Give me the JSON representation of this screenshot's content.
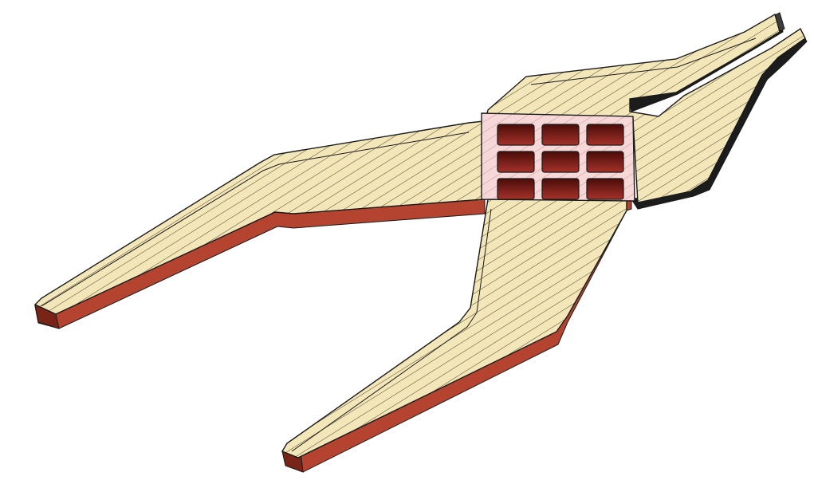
{
  "scene": {
    "subject": "pliers-section-view",
    "colors": {
      "background": "#ffffff",
      "hatch_face": "#f3e6b8",
      "hatch_line": "#3a3320",
      "outline": "#1a1a1a",
      "side_red": "#b4442f",
      "side_red_dark": "#7a2418",
      "side_black": "#1c1c1c",
      "side_gray": "#3d3d3d",
      "pivot_face": "#f7d8d8",
      "pivot_hatch": "#c98a8a",
      "pocket_light": "#a5322a",
      "pocket_dark": "#4a0c08"
    },
    "pivot_grid": {
      "rows": 3,
      "cols": 3
    }
  }
}
